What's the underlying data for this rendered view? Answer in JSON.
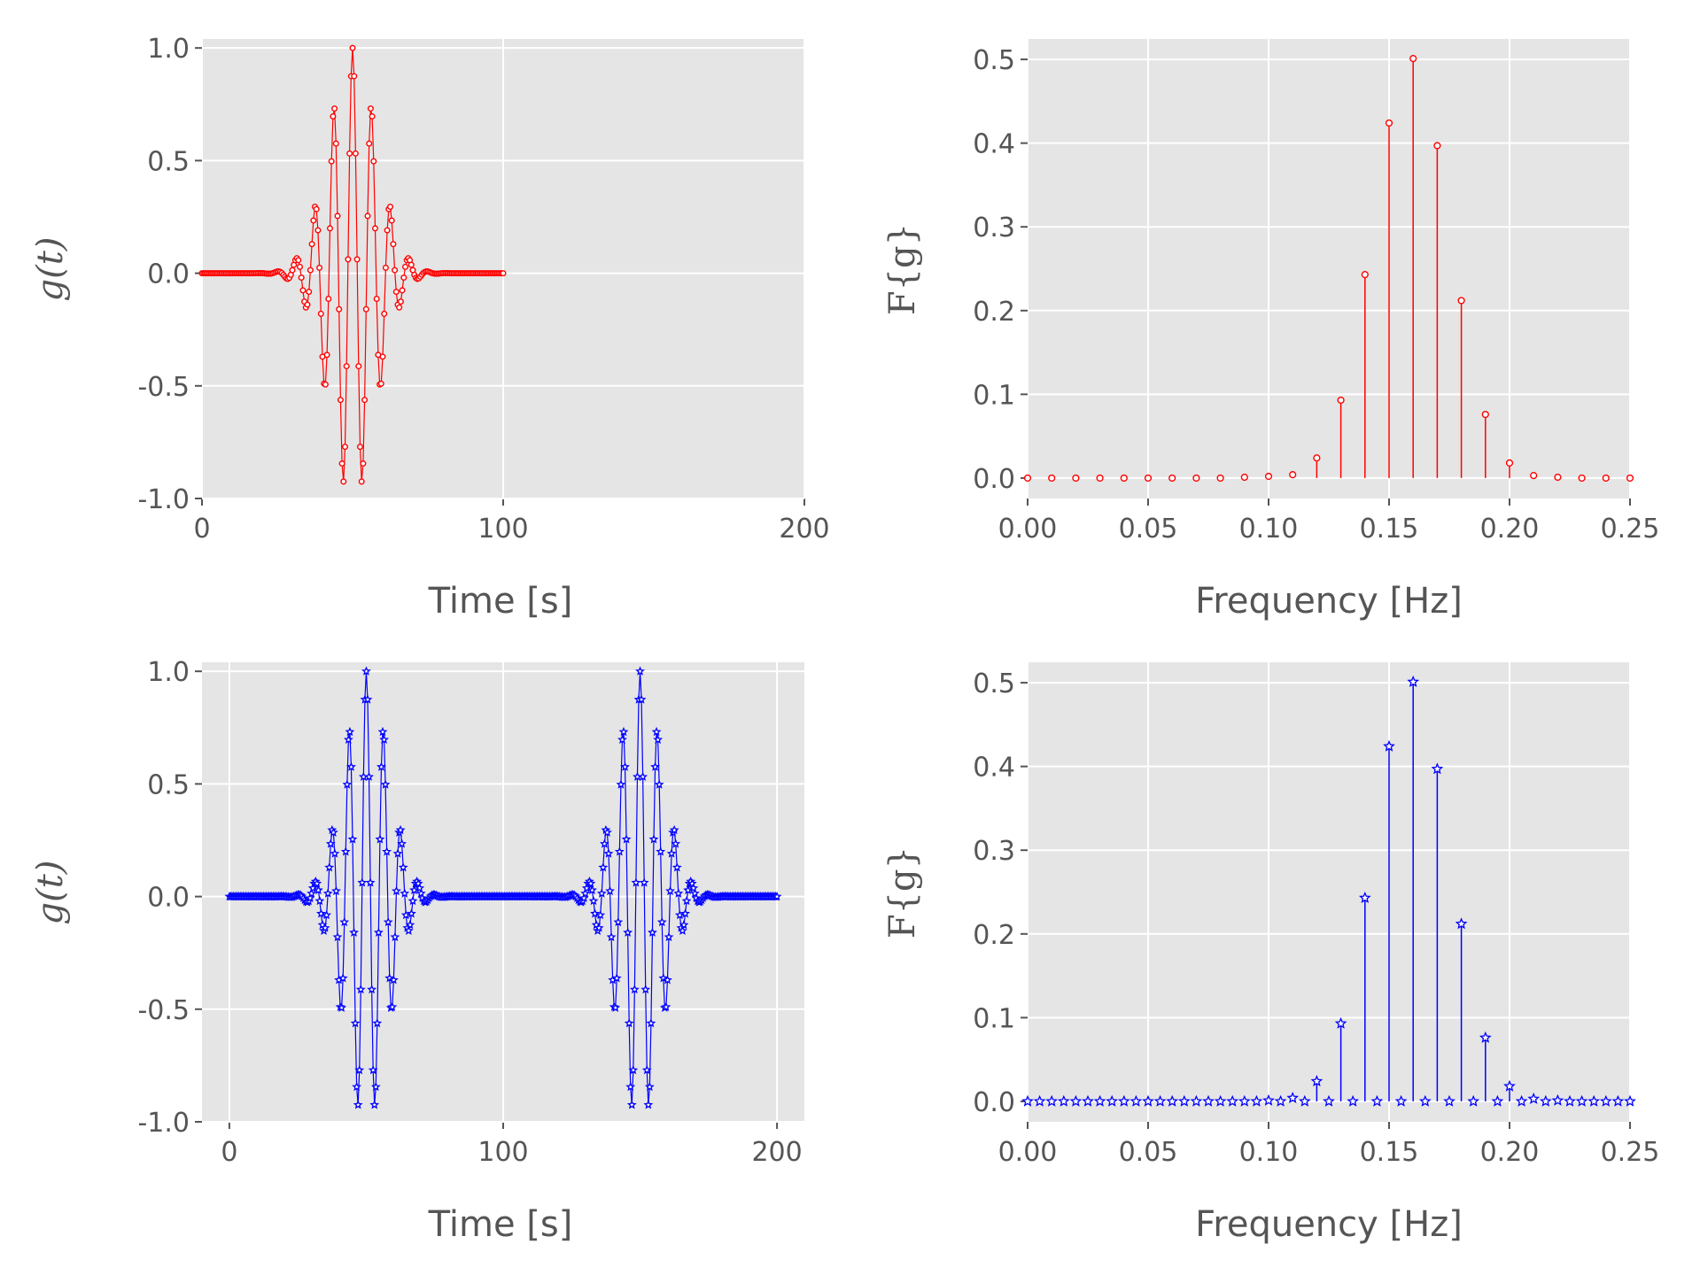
{
  "chart_data": [
    {
      "type": "line",
      "panel": "top-left",
      "xlabel": "Time [s]",
      "ylabel": "g(t)",
      "xlim": [
        0,
        200
      ],
      "ylim": [
        -1.0,
        1.0
      ],
      "xticks": [
        "0",
        "100",
        "200"
      ],
      "yticks": [
        "-1.0",
        "-0.5",
        "0.0",
        "0.5",
        "1.0"
      ],
      "grid": true,
      "color": "#ff0000",
      "marker": "circle",
      "series": [
        {
          "signal": "gaussian-modulated cosine",
          "t_start": 0,
          "t_end": 100,
          "dt": 0.5,
          "center": 50,
          "gaussian_sigma": 8,
          "carrier_frequency_hz": 0.16,
          "peak": 1.0
        }
      ]
    },
    {
      "type": "bar",
      "panel": "top-right",
      "xlabel": "Frequency [Hz]",
      "ylabel": "F{g}",
      "xlim": [
        0,
        0.25
      ],
      "ylim": [
        0,
        0.5
      ],
      "xticks": [
        "0.00",
        "0.05",
        "0.10",
        "0.15",
        "0.20",
        "0.25"
      ],
      "yticks": [
        "0.0",
        "0.1",
        "0.2",
        "0.3",
        "0.4",
        "0.5"
      ],
      "grid": true,
      "color": "#ff0000",
      "marker": "circle",
      "x": [
        0.0,
        0.01,
        0.02,
        0.03,
        0.04,
        0.05,
        0.06,
        0.07,
        0.08,
        0.09,
        0.1,
        0.11,
        0.12,
        0.13,
        0.14,
        0.15,
        0.16,
        0.17,
        0.18,
        0.19,
        0.2,
        0.21,
        0.22,
        0.23,
        0.24,
        0.25
      ],
      "values": [
        0,
        0,
        0,
        0,
        0,
        0,
        0,
        0,
        0,
        0.001,
        0.002,
        0.004,
        0.024,
        0.093,
        0.243,
        0.424,
        0.501,
        0.397,
        0.212,
        0.076,
        0.018,
        0.003,
        0.001,
        0,
        0,
        0
      ]
    },
    {
      "type": "line",
      "panel": "bottom-left",
      "xlabel": "Time [s]",
      "ylabel": "g(t)",
      "xlim": [
        -10,
        210
      ],
      "ylim": [
        -1.0,
        1.0
      ],
      "xticks": [
        "0",
        "100",
        "200"
      ],
      "yticks": [
        "-1.0",
        "-0.5",
        "0.0",
        "0.5",
        "1.0"
      ],
      "grid": true,
      "color": "#0000ff",
      "marker": "star",
      "series": [
        {
          "signal": "periodic gaussian-modulated cosine",
          "t_start": 0,
          "t_end": 200,
          "dt": 0.5,
          "centers": [
            50,
            150
          ],
          "gaussian_sigma": 8,
          "carrier_frequency_hz": 0.16,
          "peak": 1.0
        }
      ]
    },
    {
      "type": "bar",
      "panel": "bottom-right",
      "xlabel": "Frequency [Hz]",
      "ylabel": "F{g}",
      "xlim": [
        0,
        0.25
      ],
      "ylim": [
        0,
        0.5
      ],
      "xticks": [
        "0.00",
        "0.05",
        "0.10",
        "0.15",
        "0.20",
        "0.25"
      ],
      "yticks": [
        "0.0",
        "0.1",
        "0.2",
        "0.3",
        "0.4",
        "0.5"
      ],
      "grid": true,
      "color": "#0000ff",
      "marker": "star",
      "x": [
        0.0,
        0.005,
        0.01,
        0.015,
        0.02,
        0.025,
        0.03,
        0.035,
        0.04,
        0.045,
        0.05,
        0.055,
        0.06,
        0.065,
        0.07,
        0.075,
        0.08,
        0.085,
        0.09,
        0.095,
        0.1,
        0.105,
        0.11,
        0.115,
        0.12,
        0.125,
        0.13,
        0.135,
        0.14,
        0.145,
        0.15,
        0.155,
        0.16,
        0.165,
        0.17,
        0.175,
        0.18,
        0.185,
        0.19,
        0.195,
        0.2,
        0.205,
        0.21,
        0.215,
        0.22,
        0.225,
        0.23,
        0.235,
        0.24,
        0.245,
        0.25
      ],
      "values": [
        0,
        0,
        0,
        0,
        0,
        0,
        0,
        0,
        0,
        0,
        0,
        0,
        0,
        0,
        0,
        0,
        0,
        0,
        0,
        0,
        0.001,
        0,
        0.004,
        0,
        0.024,
        0,
        0.093,
        0,
        0.243,
        0,
        0.424,
        0,
        0.501,
        0,
        0.397,
        0,
        0.212,
        0,
        0.076,
        0,
        0.018,
        0,
        0.003,
        0,
        0.001,
        0,
        0,
        0,
        0,
        0,
        0
      ]
    }
  ]
}
